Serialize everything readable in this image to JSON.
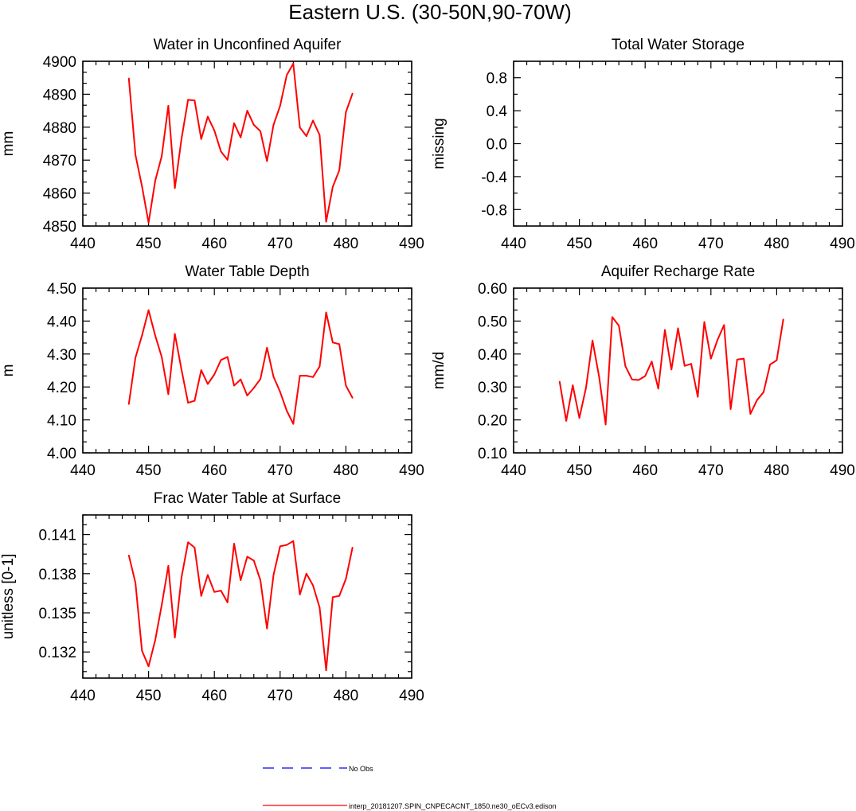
{
  "figure": {
    "title": "Eastern U.S. (30-50N,90-70W)",
    "legend": {
      "obs_label": "No Obs",
      "model_label": "interp_20181207.SPIN_CNPECACNT_1850.ne30_oECv3.edison"
    },
    "colors": {
      "model": "#ff0000",
      "obs": "#0000ff",
      "axes": "#000000"
    }
  },
  "chart_data": [
    {
      "id": "panel1",
      "type": "line",
      "title": "Water in Unconfined Aquifer",
      "xlabel": "",
      "ylabel": "mm",
      "xlim": [
        440,
        490
      ],
      "xticks": [
        440,
        450,
        460,
        470,
        480,
        490
      ],
      "xtick_labels": [
        "440",
        "450",
        "460",
        "470",
        "480",
        "490"
      ],
      "ylim": [
        4850,
        4900
      ],
      "yticks": [
        4850,
        4860,
        4870,
        4880,
        4890,
        4900
      ],
      "ytick_labels": [
        "4850",
        "4860",
        "4870",
        "4880",
        "4890",
        "4900"
      ],
      "yminor": 2,
      "series": [
        {
          "name": "interp_20181207.SPIN_CNPECACNT_1850.ne30_oECv3.edison",
          "x": [
            447,
            448,
            449,
            450,
            451,
            452,
            453,
            454,
            455,
            456,
            457,
            458,
            459,
            460,
            461,
            462,
            463,
            464,
            465,
            466,
            467,
            468,
            469,
            470,
            471,
            472,
            473,
            474,
            475,
            476,
            477,
            478,
            479,
            480,
            481
          ],
          "values": [
            4894.8,
            4871.6,
            4862.1,
            4851.0,
            4863.7,
            4871.2,
            4886.5,
            4861.5,
            4876.4,
            4888.3,
            4888.1,
            4876.4,
            4883.2,
            4879.0,
            4872.6,
            4870.1,
            4881.2,
            4876.9,
            4885.0,
            4880.7,
            4878.8,
            4869.7,
            4880.7,
            4886.5,
            4895.8,
            4899.3,
            4879.9,
            4877.3,
            4882.0,
            4877.6,
            4851.3,
            4861.9,
            4866.9,
            4884.6,
            4890.2
          ]
        }
      ]
    },
    {
      "id": "panel2",
      "type": "line",
      "title": "Total Water Storage",
      "xlabel": "",
      "ylabel": "missing",
      "xlim": [
        440,
        490
      ],
      "xticks": [
        440,
        450,
        460,
        470,
        480,
        490
      ],
      "xtick_labels": [
        "440",
        "450",
        "460",
        "470",
        "480",
        "490"
      ],
      "ylim": [
        -1.0,
        1.0
      ],
      "yticks": [
        -0.8,
        -0.4,
        0.0,
        0.4,
        0.8
      ],
      "ytick_labels": [
        "-0.8",
        "-0.4",
        "0.0",
        "0.4",
        "0.8"
      ],
      "yminor": 1,
      "series": []
    },
    {
      "id": "panel3",
      "type": "line",
      "title": "Water Table Depth",
      "xlabel": "",
      "ylabel": "m",
      "xlim": [
        440,
        490
      ],
      "xticks": [
        440,
        450,
        460,
        470,
        480,
        490
      ],
      "xtick_labels": [
        "440",
        "450",
        "460",
        "470",
        "480",
        "490"
      ],
      "ylim": [
        4.0,
        4.5
      ],
      "yticks": [
        4.0,
        4.1,
        4.2,
        4.3,
        4.4,
        4.5
      ],
      "ytick_labels": [
        "4.00",
        "4.10",
        "4.20",
        "4.30",
        "4.40",
        "4.50"
      ],
      "yminor": 2,
      "series": [
        {
          "name": "interp_20181207.SPIN_CNPECACNT_1850.ne30_oECv3.edison",
          "x": [
            447,
            448,
            449,
            450,
            451,
            452,
            453,
            454,
            455,
            456,
            457,
            458,
            459,
            460,
            461,
            462,
            463,
            464,
            465,
            466,
            467,
            468,
            469,
            470,
            471,
            472,
            473,
            474,
            475,
            476,
            477,
            478,
            479,
            480,
            481
          ],
          "values": [
            4.148,
            4.289,
            4.356,
            4.433,
            4.356,
            4.291,
            4.178,
            4.361,
            4.253,
            4.152,
            4.158,
            4.251,
            4.209,
            4.238,
            4.282,
            4.291,
            4.204,
            4.223,
            4.174,
            4.197,
            4.224,
            4.319,
            4.231,
            4.185,
            4.128,
            4.088,
            4.234,
            4.234,
            4.23,
            4.262,
            4.426,
            4.335,
            4.33,
            4.204,
            4.167
          ]
        }
      ]
    },
    {
      "id": "panel4",
      "type": "line",
      "title": "Aquifer Recharge Rate",
      "xlabel": "",
      "ylabel": "mm/d",
      "xlim": [
        440,
        490
      ],
      "xticks": [
        440,
        450,
        460,
        470,
        480,
        490
      ],
      "xtick_labels": [
        "440",
        "450",
        "460",
        "470",
        "480",
        "490"
      ],
      "ylim": [
        0.1,
        0.6
      ],
      "yticks": [
        0.1,
        0.2,
        0.3,
        0.4,
        0.5,
        0.6
      ],
      "ytick_labels": [
        "0.10",
        "0.20",
        "0.30",
        "0.40",
        "0.50",
        "0.60"
      ],
      "yminor": 2,
      "series": [
        {
          "name": "interp_20181207.SPIN_CNPECACNT_1850.ne30_oECv3.edison",
          "x": [
            447,
            448,
            449,
            450,
            451,
            452,
            453,
            454,
            455,
            456,
            457,
            458,
            459,
            460,
            461,
            462,
            463,
            464,
            465,
            466,
            467,
            468,
            469,
            470,
            471,
            472,
            473,
            474,
            475,
            476,
            477,
            478,
            479,
            480,
            481
          ],
          "values": [
            0.316,
            0.197,
            0.305,
            0.206,
            0.297,
            0.441,
            0.331,
            0.186,
            0.512,
            0.486,
            0.363,
            0.323,
            0.321,
            0.333,
            0.377,
            0.295,
            0.473,
            0.353,
            0.478,
            0.364,
            0.37,
            0.27,
            0.497,
            0.386,
            0.443,
            0.488,
            0.233,
            0.383,
            0.386,
            0.218,
            0.26,
            0.284,
            0.368,
            0.381,
            0.505
          ]
        }
      ]
    },
    {
      "id": "panel5",
      "type": "line",
      "title": "Frac Water Table at Surface",
      "xlabel": "",
      "ylabel": "unitless [0-1]",
      "xlim": [
        440,
        490
      ],
      "xticks": [
        440,
        450,
        460,
        470,
        480,
        490
      ],
      "xtick_labels": [
        "440",
        "450",
        "460",
        "470",
        "480",
        "490"
      ],
      "ylim": [
        0.13,
        0.1425
      ],
      "yticks": [
        0.132,
        0.135,
        0.138,
        0.141
      ],
      "ytick_labels": [
        "0.132",
        "0.135",
        "0.138",
        "0.141"
      ],
      "yminor": 3,
      "series": [
        {
          "name": "interp_20181207.SPIN_CNPECACNT_1850.ne30_oECv3.edison",
          "x": [
            447,
            448,
            449,
            450,
            451,
            452,
            453,
            454,
            455,
            456,
            457,
            458,
            459,
            460,
            461,
            462,
            463,
            464,
            465,
            466,
            467,
            468,
            469,
            470,
            471,
            472,
            473,
            474,
            475,
            476,
            477,
            478,
            479,
            480,
            481
          ],
          "values": [
            0.1394,
            0.1373,
            0.1321,
            0.1309,
            0.1329,
            0.1356,
            0.1386,
            0.1331,
            0.1377,
            0.1404,
            0.14,
            0.1363,
            0.1379,
            0.1366,
            0.1367,
            0.1358,
            0.1403,
            0.1375,
            0.1393,
            0.139,
            0.1375,
            0.1338,
            0.1379,
            0.1401,
            0.1402,
            0.1405,
            0.1364,
            0.138,
            0.1371,
            0.1354,
            0.1306,
            0.1362,
            0.1363,
            0.1376,
            0.14
          ]
        }
      ]
    }
  ]
}
